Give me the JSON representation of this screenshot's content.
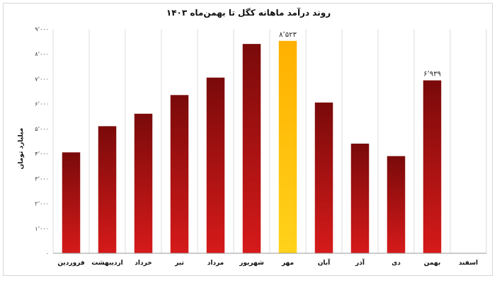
{
  "chart_data": {
    "type": "bar",
    "title": "روند درآمد ماهانه کگل تا بهمن‌ماه ۱۴۰۳",
    "ylabel": "میلیارد تومان",
    "xlabel": "",
    "ylim": [
      0,
      9000
    ],
    "yticks": [
      0,
      1000,
      2000,
      3000,
      4000,
      5000,
      6000,
      7000,
      8000,
      9000
    ],
    "ytick_labels": [
      "۰",
      "۱٬۰۰۰",
      "۲٬۰۰۰",
      "۳٬۰۰۰",
      "۴٬۰۰۰",
      "۵٬۰۰۰",
      "۶٬۰۰۰",
      "۷٬۰۰۰",
      "۸٬۰۰۰",
      "۹٬۰۰۰"
    ],
    "grid": "vertical",
    "legend": "none",
    "categories": [
      "فروردین",
      "اردیبهشت",
      "خرداد",
      "تیر",
      "مرداد",
      "شهریور",
      "مهر",
      "آبان",
      "آذر",
      "دی",
      "بهمن",
      "اسفند"
    ],
    "values": [
      4050,
      5100,
      5600,
      6350,
      7050,
      8400,
      8523,
      6050,
      4400,
      3900,
      6939,
      null
    ],
    "highlight_index": 6,
    "data_labels": [
      {
        "index": 6,
        "text": "۸٬۵۲۳"
      },
      {
        "index": 10,
        "text": "۶٬۹۳۹"
      }
    ],
    "colors": {
      "bar_top": "#7a0a0a",
      "bar_bottom": "#d61a1a",
      "highlight_top": "#ffb000",
      "highlight_bottom": "#ffd21a",
      "grid": "#dcdcdc",
      "axis": "#9a9a9a"
    }
  }
}
